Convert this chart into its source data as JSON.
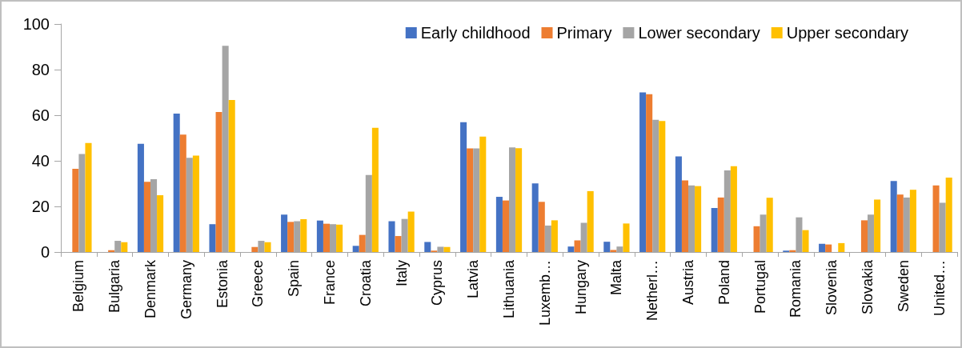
{
  "chart_data": {
    "type": "bar",
    "categories": [
      "Belgium",
      "Bulgaria",
      "Denmark",
      "Germany",
      "Estonia",
      "Greece",
      "Spain",
      "France",
      "Croatia",
      "Italy",
      "Cyprus",
      "Latvia",
      "Lithuania",
      "Luxemb…",
      "Hungary",
      "Malta",
      "Netherl…",
      "Austria",
      "Poland",
      "Portugal",
      "Romania",
      "Slovenia",
      "Slovakia",
      "Sweden",
      "United…"
    ],
    "series": [
      {
        "name": "Early childhood",
        "color": "#4472c4",
        "values": [
          null,
          null,
          47.5,
          60.7,
          12.2,
          null,
          16.4,
          13.8,
          2.7,
          13.5,
          4.4,
          56.9,
          24.2,
          30.1,
          2.4,
          4.5,
          70.0,
          41.9,
          19.3,
          null,
          0.6,
          3.6,
          null,
          31.1,
          null
        ]
      },
      {
        "name": "Primary",
        "color": "#ed7d31",
        "values": [
          36.5,
          0.8,
          30.8,
          51.5,
          61.4,
          2.2,
          13.2,
          12.4,
          7.5,
          7.0,
          0.6,
          45.4,
          22.6,
          22.0,
          5.1,
          0.9,
          69.2,
          31.4,
          23.9,
          11.3,
          0.8,
          3.3,
          13.9,
          25.2,
          29.2
        ]
      },
      {
        "name": "Lower secondary",
        "color": "#a5a5a5",
        "values": [
          43.0,
          4.9,
          31.9,
          41.3,
          90.4,
          4.9,
          13.5,
          12.2,
          33.8,
          14.5,
          2.3,
          45.4,
          45.9,
          11.6,
          12.8,
          2.4,
          58.0,
          29.2,
          35.8,
          16.4,
          15.2,
          null,
          16.4,
          23.9,
          21.6
        ]
      },
      {
        "name": "Upper secondary",
        "color": "#ffc000",
        "values": [
          47.8,
          4.3,
          24.9,
          42.3,
          66.7,
          4.3,
          14.4,
          12.0,
          54.5,
          17.7,
          2.2,
          50.6,
          45.5,
          13.9,
          26.7,
          12.5,
          57.5,
          28.9,
          37.6,
          23.8,
          9.6,
          3.9,
          23.0,
          27.3,
          32.6
        ]
      }
    ],
    "ylim": [
      0,
      100
    ],
    "yticks": [
      0,
      20,
      40,
      60,
      80,
      100
    ],
    "grid": false,
    "legend": "top right"
  }
}
